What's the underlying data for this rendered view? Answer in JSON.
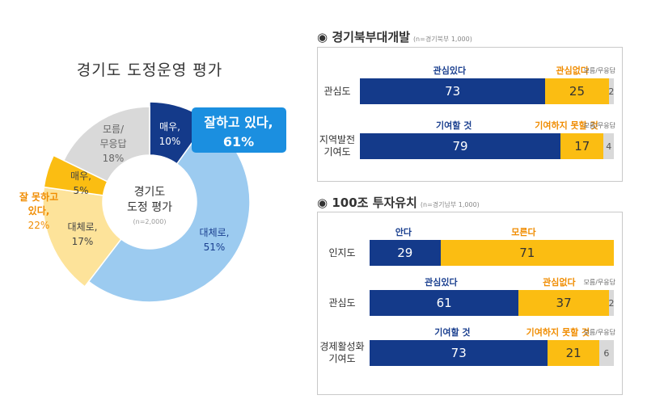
{
  "colors": {
    "navy": "#143a8a",
    "light_blue": "#9ccbf0",
    "callout_blue": "#1b8fe0",
    "yellow": "#fbbd12",
    "light_yellow": "#fde39a",
    "gray": "#d9d9d9",
    "orange_text": "#f08c00"
  },
  "chart_data": [
    {
      "type": "pie",
      "title": "경기도 도정운영 평가",
      "center_label": [
        "경기도",
        "도정 평가"
      ],
      "center_sub": "(n=2,000)",
      "slices": [
        {
          "label": "매우,",
          "value": 10,
          "value_text": "10%",
          "color": "#143a8a"
        },
        {
          "label": "대체로,",
          "value": 51,
          "value_text": "51%",
          "color": "#9ccbf0"
        },
        {
          "label": "대체로,",
          "value": 17,
          "value_text": "17%",
          "color": "#fde39a"
        },
        {
          "label": "매우,",
          "value": 5,
          "value_text": "5%",
          "color": "#fbbd12"
        },
        {
          "label": "모름/ 무응답",
          "value": 18,
          "value_text": "18%",
          "color": "#d9d9d9"
        }
      ],
      "groups": [
        {
          "label": "잘하고 있다,",
          "value_text": "61%",
          "value": 61
        },
        {
          "label": "잘 못하고 있다,",
          "value_text": "22%",
          "value": 22
        }
      ]
    },
    {
      "type": "bar",
      "title": "경기북부대개발",
      "subtitle": "(n=경기북부 1,000)",
      "stacked": true,
      "orientation": "horizontal",
      "rows": [
        {
          "label": "관심도",
          "values": [
            73,
            25,
            2
          ],
          "legend": [
            "관심있다",
            "관심없다",
            "모름/무응답"
          ]
        },
        {
          "label": "지역발전 기여도",
          "values": [
            79,
            17,
            4
          ],
          "legend": [
            "기여할 것",
            "기여하지 못할 것",
            "모름/무응답"
          ]
        }
      ]
    },
    {
      "type": "bar",
      "title": "100조 투자유치",
      "subtitle": "(n=경기남부 1,000)",
      "stacked": true,
      "orientation": "horizontal",
      "rows": [
        {
          "label": "인지도",
          "values": [
            29,
            71
          ],
          "legend": [
            "안다",
            "모른다"
          ]
        },
        {
          "label": "관심도",
          "values": [
            61,
            37,
            2
          ],
          "legend": [
            "관심있다",
            "관심없다",
            "모름/무응답"
          ]
        },
        {
          "label": "경제활성화 기여도",
          "values": [
            73,
            21,
            6
          ],
          "legend": [
            "기여할 것",
            "기여하지 못할 것",
            "모름/무응답"
          ]
        }
      ]
    }
  ]
}
